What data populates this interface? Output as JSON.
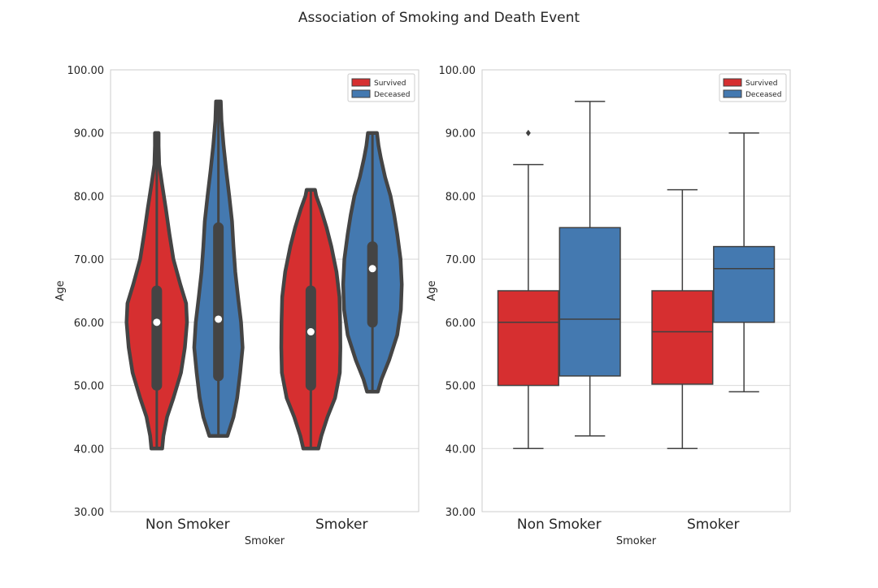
{
  "suptitle": "Association of Smoking and Death Event",
  "colors": {
    "survived": "#d62f30",
    "deceased": "#4479b0",
    "edge_violin": "#444444",
    "edge_box": "#404040",
    "grid": "#d9d9d9",
    "spine": "#cccccc",
    "text": "#262626"
  },
  "chart_data": [
    {
      "type": "violin",
      "xlabel": "Smoker",
      "ylabel": "Age",
      "ylim": [
        30,
        100
      ],
      "yticks": [
        "30.00",
        "40.00",
        "50.00",
        "60.00",
        "70.00",
        "80.00",
        "90.00",
        "100.00"
      ],
      "categories": [
        "Non Smoker",
        "Smoker"
      ],
      "grid": true,
      "legend": {
        "position": "top-right",
        "entries": [
          "Survived",
          "Deceased"
        ]
      },
      "series": [
        {
          "name": "Survived",
          "color_key": "survived",
          "groups": [
            {
              "category": "Non Smoker",
              "min": 40,
              "q1": 50,
              "median": 60,
              "q3": 65,
              "max": 90,
              "density": [
                [
                  40,
                  0.18
                ],
                [
                  42,
                  0.22
                ],
                [
                  45,
                  0.34
                ],
                [
                  48,
                  0.55
                ],
                [
                  52,
                  0.8
                ],
                [
                  56,
                  0.93
                ],
                [
                  60,
                  1.0
                ],
                [
                  63,
                  0.97
                ],
                [
                  66,
                  0.78
                ],
                [
                  70,
                  0.55
                ],
                [
                  74,
                  0.42
                ],
                [
                  78,
                  0.3
                ],
                [
                  82,
                  0.17
                ],
                [
                  85,
                  0.08
                ],
                [
                  88,
                  0.06
                ],
                [
                  90,
                  0.06
                ]
              ]
            },
            {
              "category": "Smoker",
              "min": 40,
              "q1": 50,
              "median": 58.5,
              "q3": 65,
              "max": 81,
              "density": [
                [
                  40,
                  0.25
                ],
                [
                  42,
                  0.35
                ],
                [
                  45,
                  0.55
                ],
                [
                  48,
                  0.8
                ],
                [
                  52,
                  0.96
                ],
                [
                  56,
                  0.98
                ],
                [
                  60,
                  0.97
                ],
                [
                  64,
                  0.95
                ],
                [
                  68,
                  0.85
                ],
                [
                  72,
                  0.68
                ],
                [
                  75,
                  0.52
                ],
                [
                  78,
                  0.33
                ],
                [
                  80,
                  0.18
                ],
                [
                  81,
                  0.14
                ]
              ]
            }
          ]
        },
        {
          "name": "Deceased",
          "color_key": "deceased",
          "groups": [
            {
              "category": "Non Smoker",
              "min": 42,
              "q1": 51.5,
              "median": 60.5,
              "q3": 75,
              "max": 95,
              "density": [
                [
                  42,
                  0.3
                ],
                [
                  45,
                  0.5
                ],
                [
                  48,
                  0.62
                ],
                [
                  52,
                  0.72
                ],
                [
                  56,
                  0.8
                ],
                [
                  60,
                  0.75
                ],
                [
                  64,
                  0.65
                ],
                [
                  68,
                  0.56
                ],
                [
                  72,
                  0.5
                ],
                [
                  76,
                  0.45
                ],
                [
                  80,
                  0.36
                ],
                [
                  84,
                  0.26
                ],
                [
                  88,
                  0.17
                ],
                [
                  92,
                  0.1
                ],
                [
                  95,
                  0.08
                ]
              ]
            },
            {
              "category": "Smoker",
              "min": 49,
              "q1": 60,
              "median": 68.5,
              "q3": 72,
              "max": 90,
              "density": [
                [
                  49,
                  0.18
                ],
                [
                  51,
                  0.3
                ],
                [
                  54,
                  0.55
                ],
                [
                  58,
                  0.82
                ],
                [
                  62,
                  0.94
                ],
                [
                  66,
                  0.97
                ],
                [
                  70,
                  0.93
                ],
                [
                  74,
                  0.82
                ],
                [
                  77,
                  0.72
                ],
                [
                  80,
                  0.6
                ],
                [
                  83,
                  0.42
                ],
                [
                  86,
                  0.28
                ],
                [
                  88,
                  0.2
                ],
                [
                  90,
                  0.15
                ]
              ]
            }
          ]
        }
      ]
    },
    {
      "type": "box",
      "xlabel": "Smoker",
      "ylabel": "Age",
      "ylim": [
        30,
        100
      ],
      "yticks": [
        "30.00",
        "40.00",
        "50.00",
        "60.00",
        "70.00",
        "80.00",
        "90.00",
        "100.00"
      ],
      "categories": [
        "Non Smoker",
        "Smoker"
      ],
      "grid": true,
      "legend": {
        "position": "top-right",
        "entries": [
          "Survived",
          "Deceased"
        ]
      },
      "series": [
        {
          "name": "Survived",
          "color_key": "survived",
          "groups": [
            {
              "category": "Non Smoker",
              "whisker_low": 40,
              "q1": 50,
              "median": 60,
              "q3": 65,
              "whisker_high": 85,
              "outliers": [
                90
              ]
            },
            {
              "category": "Smoker",
              "whisker_low": 40,
              "q1": 50.2,
              "median": 58.5,
              "q3": 65,
              "whisker_high": 81,
              "outliers": []
            }
          ]
        },
        {
          "name": "Deceased",
          "color_key": "deceased",
          "groups": [
            {
              "category": "Non Smoker",
              "whisker_low": 42,
              "q1": 51.5,
              "median": 60.5,
              "q3": 75,
              "whisker_high": 95,
              "outliers": []
            },
            {
              "category": "Smoker",
              "whisker_low": 49,
              "q1": 60,
              "median": 68.5,
              "q3": 72,
              "whisker_high": 90,
              "outliers": []
            }
          ]
        }
      ]
    }
  ]
}
